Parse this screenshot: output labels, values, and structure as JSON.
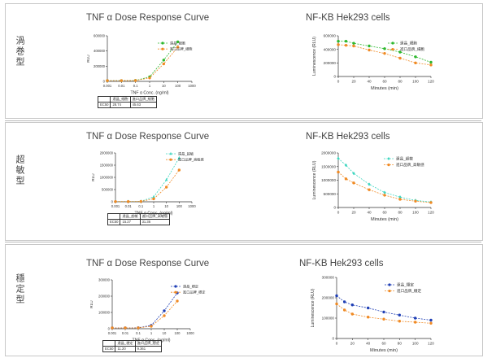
{
  "rows": [
    {
      "label": "渦巻型",
      "left_chart": {
        "title": "TNF α Dose Response Curve",
        "chart_data": {
          "type": "line",
          "xscale": "log",
          "x": [
            0.001,
            0.01,
            0.1,
            1,
            10,
            100,
            1000
          ],
          "xtick_labels": [
            "0.001",
            "0.01",
            "0.1",
            "1",
            "10",
            "100",
            "1000"
          ],
          "xlabel": "TNF α Conc. (ng/ml)",
          "ylabel": "RLU",
          "ylim": [
            0,
            600000
          ],
          "yticks": [
            0,
            200000,
            400000,
            600000
          ],
          "ytick_labels": [
            "0",
            "200000",
            "400000",
            "600000"
          ],
          "series": [
            {
              "name": "遠晶_細胞",
              "color": "#2db82d",
              "marker": "circle",
              "x": [
                0.001,
                0.01,
                0.1,
                1,
                10,
                100
              ],
              "values": [
                10000,
                10000,
                12000,
                60000,
                280000,
                520000
              ]
            },
            {
              "name": "進口品牌_細胞",
              "color": "#f08a24",
              "marker": "circle",
              "x": [
                0.001,
                0.01,
                0.1,
                1,
                10,
                100
              ],
              "values": [
                10000,
                10000,
                11000,
                45000,
                230000,
                450000
              ]
            }
          ]
        },
        "table": {
          "header": [
            "",
            "遠晶_細胞",
            "進口品牌_細胞"
          ],
          "row": [
            "EC50",
            "28.74",
            "45.63"
          ]
        }
      },
      "right_chart": {
        "title": "NF-KB Hek293 cells",
        "chart_data": {
          "type": "line",
          "xlabel": "Minutes (min)",
          "ylabel": "Luminescence (RLU)",
          "xlim": [
            0,
            120
          ],
          "xticks": [
            0,
            20,
            40,
            60,
            80,
            100,
            120
          ],
          "ylim": [
            0,
            600000
          ],
          "yticks": [
            0,
            200000,
            400000,
            600000
          ],
          "ytick_labels": [
            "0",
            "200000",
            "400000",
            "600000"
          ],
          "series": [
            {
              "name": "遠晶_細胞",
              "color": "#2db82d",
              "marker": "circle",
              "x": [
                0,
                10,
                20,
                40,
                60,
                80,
                100,
                120
              ],
              "values": [
                520000,
                520000,
                490000,
                450000,
                410000,
                360000,
                290000,
                210000
              ]
            },
            {
              "name": "進口品牌_細胞",
              "color": "#f08a24",
              "marker": "circle",
              "x": [
                0,
                10,
                20,
                40,
                60,
                80,
                100,
                120
              ],
              "values": [
                470000,
                460000,
                450000,
                390000,
                340000,
                270000,
                200000,
                170000
              ]
            }
          ]
        }
      }
    },
    {
      "label": "超敏型",
      "left_chart": {
        "title": "TNF α Dose Response Curve",
        "chart_data": {
          "type": "line",
          "xscale": "log",
          "x": [
            0.001,
            0.01,
            0.1,
            1,
            10,
            100,
            1000
          ],
          "xtick_labels": [
            "0.001",
            "0.01",
            "0.1",
            "1",
            "10",
            "100",
            "1000"
          ],
          "xlabel": "TNF α Conc. (ng/ml)",
          "ylabel": "RLU",
          "ylim": [
            0,
            2000000
          ],
          "yticks": [
            0,
            500000,
            1000000,
            1500000,
            2000000
          ],
          "ytick_labels": [
            "0",
            "500000",
            "1000000",
            "1500000",
            "2000000"
          ],
          "series": [
            {
              "name": "遠晶_超敏",
              "color": "#3dd6c0",
              "marker": "triangle",
              "x": [
                0.001,
                0.01,
                0.1,
                1,
                10,
                100
              ],
              "values": [
                10000,
                12000,
                20000,
                200000,
                900000,
                1800000
              ]
            },
            {
              "name": "進口品牌_高敏感",
              "color": "#f08a24",
              "marker": "circle",
              "x": [
                0.001,
                0.01,
                0.1,
                1,
                10,
                100
              ],
              "values": [
                10000,
                10000,
                15000,
                120000,
                600000,
                1300000
              ]
            }
          ]
        },
        "table": {
          "header": [
            "",
            "遠晶_超敏",
            "進口品牌_高敏感"
          ],
          "row": [
            "EC50",
            "15.27",
            "31.36"
          ]
        }
      },
      "right_chart": {
        "title": "NF-KB Hek293 cells",
        "chart_data": {
          "type": "line",
          "xlabel": "Minutes (min)",
          "ylabel": "Luminescence (RLU)",
          "xlim": [
            0,
            120
          ],
          "xticks": [
            0,
            20,
            40,
            60,
            80,
            100,
            120
          ],
          "ylim": [
            0,
            2000000
          ],
          "yticks": [
            0,
            500000,
            1000000,
            1500000,
            2000000
          ],
          "ytick_labels": [
            "0",
            "500000",
            "1000000",
            "1500000",
            "2000000"
          ],
          "series": [
            {
              "name": "遠晶_超敏",
              "color": "#3dd6c0",
              "marker": "diamond",
              "x": [
                0,
                10,
                20,
                40,
                60,
                80,
                100,
                120
              ],
              "values": [
                1800000,
                1550000,
                1250000,
                850000,
                550000,
                380000,
                260000,
                200000
              ]
            },
            {
              "name": "進口品牌_高敏感",
              "color": "#f08a24",
              "marker": "circle",
              "x": [
                0,
                10,
                20,
                40,
                60,
                80,
                100,
                120
              ],
              "values": [
                1300000,
                1050000,
                900000,
                650000,
                450000,
                300000,
                230000,
                180000
              ]
            }
          ]
        }
      }
    },
    {
      "label": "穩定型",
      "left_chart": {
        "title": "TNF α Dose Response Curve",
        "chart_data": {
          "type": "line",
          "xscale": "log",
          "x": [
            0.001,
            0.01,
            0.1,
            1,
            10,
            100,
            1000
          ],
          "xtick_labels": [
            "0.001",
            "0.01",
            "0.1",
            "1",
            "10",
            "100",
            "1000"
          ],
          "xlabel": "TNF α Conc. (ng/ml)",
          "ylabel": "RLU",
          "ylim": [
            0,
            300000
          ],
          "yticks": [
            0,
            100000,
            200000,
            300000
          ],
          "ytick_labels": [
            "0",
            "100000",
            "200000",
            "300000"
          ],
          "series": [
            {
              "name": "遠晶_穩定",
              "color": "#1f3fb5",
              "marker": "circle",
              "x": [
                0.001,
                0.01,
                0.1,
                1,
                10,
                100
              ],
              "values": [
                5000,
                5000,
                6000,
                20000,
                110000,
                220000
              ]
            },
            {
              "name": "進口品牌_穩定",
              "color": "#f08a24",
              "marker": "circle",
              "x": [
                0.001,
                0.01,
                0.1,
                1,
                10,
                100
              ],
              "values": [
                5000,
                5000,
                5000,
                15000,
                80000,
                170000
              ]
            }
          ]
        },
        "table": {
          "header": [
            "",
            "遠晶_穩定",
            "進口品牌_穩定"
          ],
          "row": [
            "EC50",
            "11.20",
            "9.361"
          ]
        }
      },
      "right_chart": {
        "title": "NF-KB Hek293 cells",
        "chart_data": {
          "type": "line",
          "xlabel": "Minutes (min)",
          "ylabel": "Luminescence (RLU)",
          "xlim": [
            0,
            120
          ],
          "xticks": [
            0,
            20,
            40,
            60,
            80,
            100,
            120
          ],
          "ylim": [
            0,
            300000
          ],
          "yticks": [
            0,
            100000,
            200000,
            300000
          ],
          "ytick_labels": [
            "0",
            "100000",
            "200000",
            "300000"
          ],
          "series": [
            {
              "name": "遠晶_穩定",
              "color": "#1f3fb5",
              "marker": "circle",
              "x": [
                0,
                10,
                20,
                40,
                60,
                80,
                100,
                120
              ],
              "values": [
                210000,
                180000,
                165000,
                150000,
                130000,
                115000,
                100000,
                90000
              ]
            },
            {
              "name": "進口品牌_穩定",
              "color": "#f08a24",
              "marker": "circle",
              "x": [
                0,
                10,
                20,
                40,
                60,
                80,
                100,
                120
              ],
              "values": [
                170000,
                140000,
                120000,
                105000,
                95000,
                85000,
                80000,
                75000
              ]
            }
          ]
        }
      }
    }
  ]
}
